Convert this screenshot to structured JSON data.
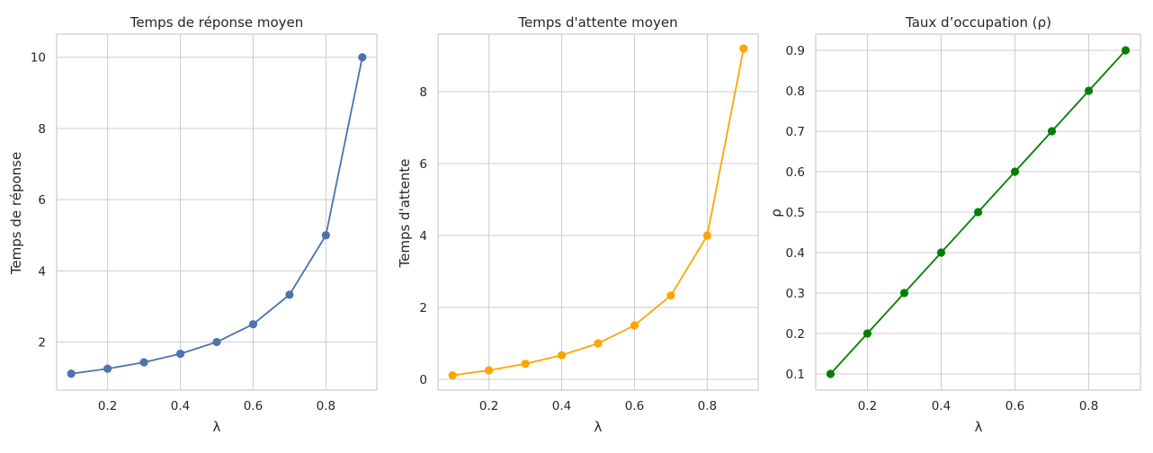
{
  "chart_data": [
    {
      "type": "line",
      "title": "Temps de réponse moyen",
      "xlabel": "λ",
      "ylabel": "Temps de réponse",
      "x": [
        0.1,
        0.2,
        0.3,
        0.4,
        0.5,
        0.6,
        0.7,
        0.8,
        0.9
      ],
      "series": [
        {
          "values": [
            1.11,
            1.25,
            1.43,
            1.67,
            2.0,
            2.5,
            3.33,
            5.0,
            10.0
          ]
        }
      ],
      "xlim": [
        0.06,
        0.94
      ],
      "ylim": [
        0.65,
        10.65
      ],
      "xticks": [
        0.2,
        0.4,
        0.6,
        0.8
      ],
      "xtick_labels": [
        "0.2",
        "0.4",
        "0.6",
        "0.8"
      ],
      "yticks": [
        2,
        4,
        6,
        8,
        10
      ],
      "ytick_labels": [
        "2",
        "4",
        "6",
        "8",
        "10"
      ],
      "color": "#4c72b0",
      "grid": true
    },
    {
      "type": "line",
      "title": "Temps d'attente moyen",
      "xlabel": "λ",
      "ylabel": "Temps d'attente",
      "x": [
        0.1,
        0.2,
        0.3,
        0.4,
        0.5,
        0.6,
        0.7,
        0.8,
        0.9
      ],
      "series": [
        {
          "values": [
            0.11,
            0.25,
            0.43,
            0.67,
            1.0,
            1.5,
            2.33,
            4.0,
            9.2
          ]
        }
      ],
      "xlim": [
        0.06,
        0.94
      ],
      "ylim": [
        -0.3,
        9.6
      ],
      "xticks": [
        0.2,
        0.4,
        0.6,
        0.8
      ],
      "xtick_labels": [
        "0.2",
        "0.4",
        "0.6",
        "0.8"
      ],
      "yticks": [
        0,
        2,
        4,
        6,
        8
      ],
      "ytick_labels": [
        "0",
        "2",
        "4",
        "6",
        "8"
      ],
      "color": "#ffa500",
      "grid": true
    },
    {
      "type": "line",
      "title": "Taux d’occupation (ρ)",
      "xlabel": "λ",
      "ylabel": "ρ",
      "x": [
        0.1,
        0.2,
        0.3,
        0.4,
        0.5,
        0.6,
        0.7,
        0.8,
        0.9
      ],
      "series": [
        {
          "values": [
            0.1,
            0.2,
            0.3,
            0.4,
            0.5,
            0.6,
            0.7,
            0.8,
            0.9
          ]
        }
      ],
      "xlim": [
        0.06,
        0.94
      ],
      "ylim": [
        0.06,
        0.94
      ],
      "xticks": [
        0.2,
        0.4,
        0.6,
        0.8
      ],
      "xtick_labels": [
        "0.2",
        "0.4",
        "0.6",
        "0.8"
      ],
      "yticks": [
        0.1,
        0.2,
        0.3,
        0.4,
        0.5,
        0.6,
        0.7,
        0.8,
        0.9
      ],
      "ytick_labels": [
        "0.1",
        "0.2",
        "0.3",
        "0.4",
        "0.5",
        "0.6",
        "0.7",
        "0.8",
        "0.9"
      ],
      "color": "#008000",
      "grid": true
    }
  ]
}
